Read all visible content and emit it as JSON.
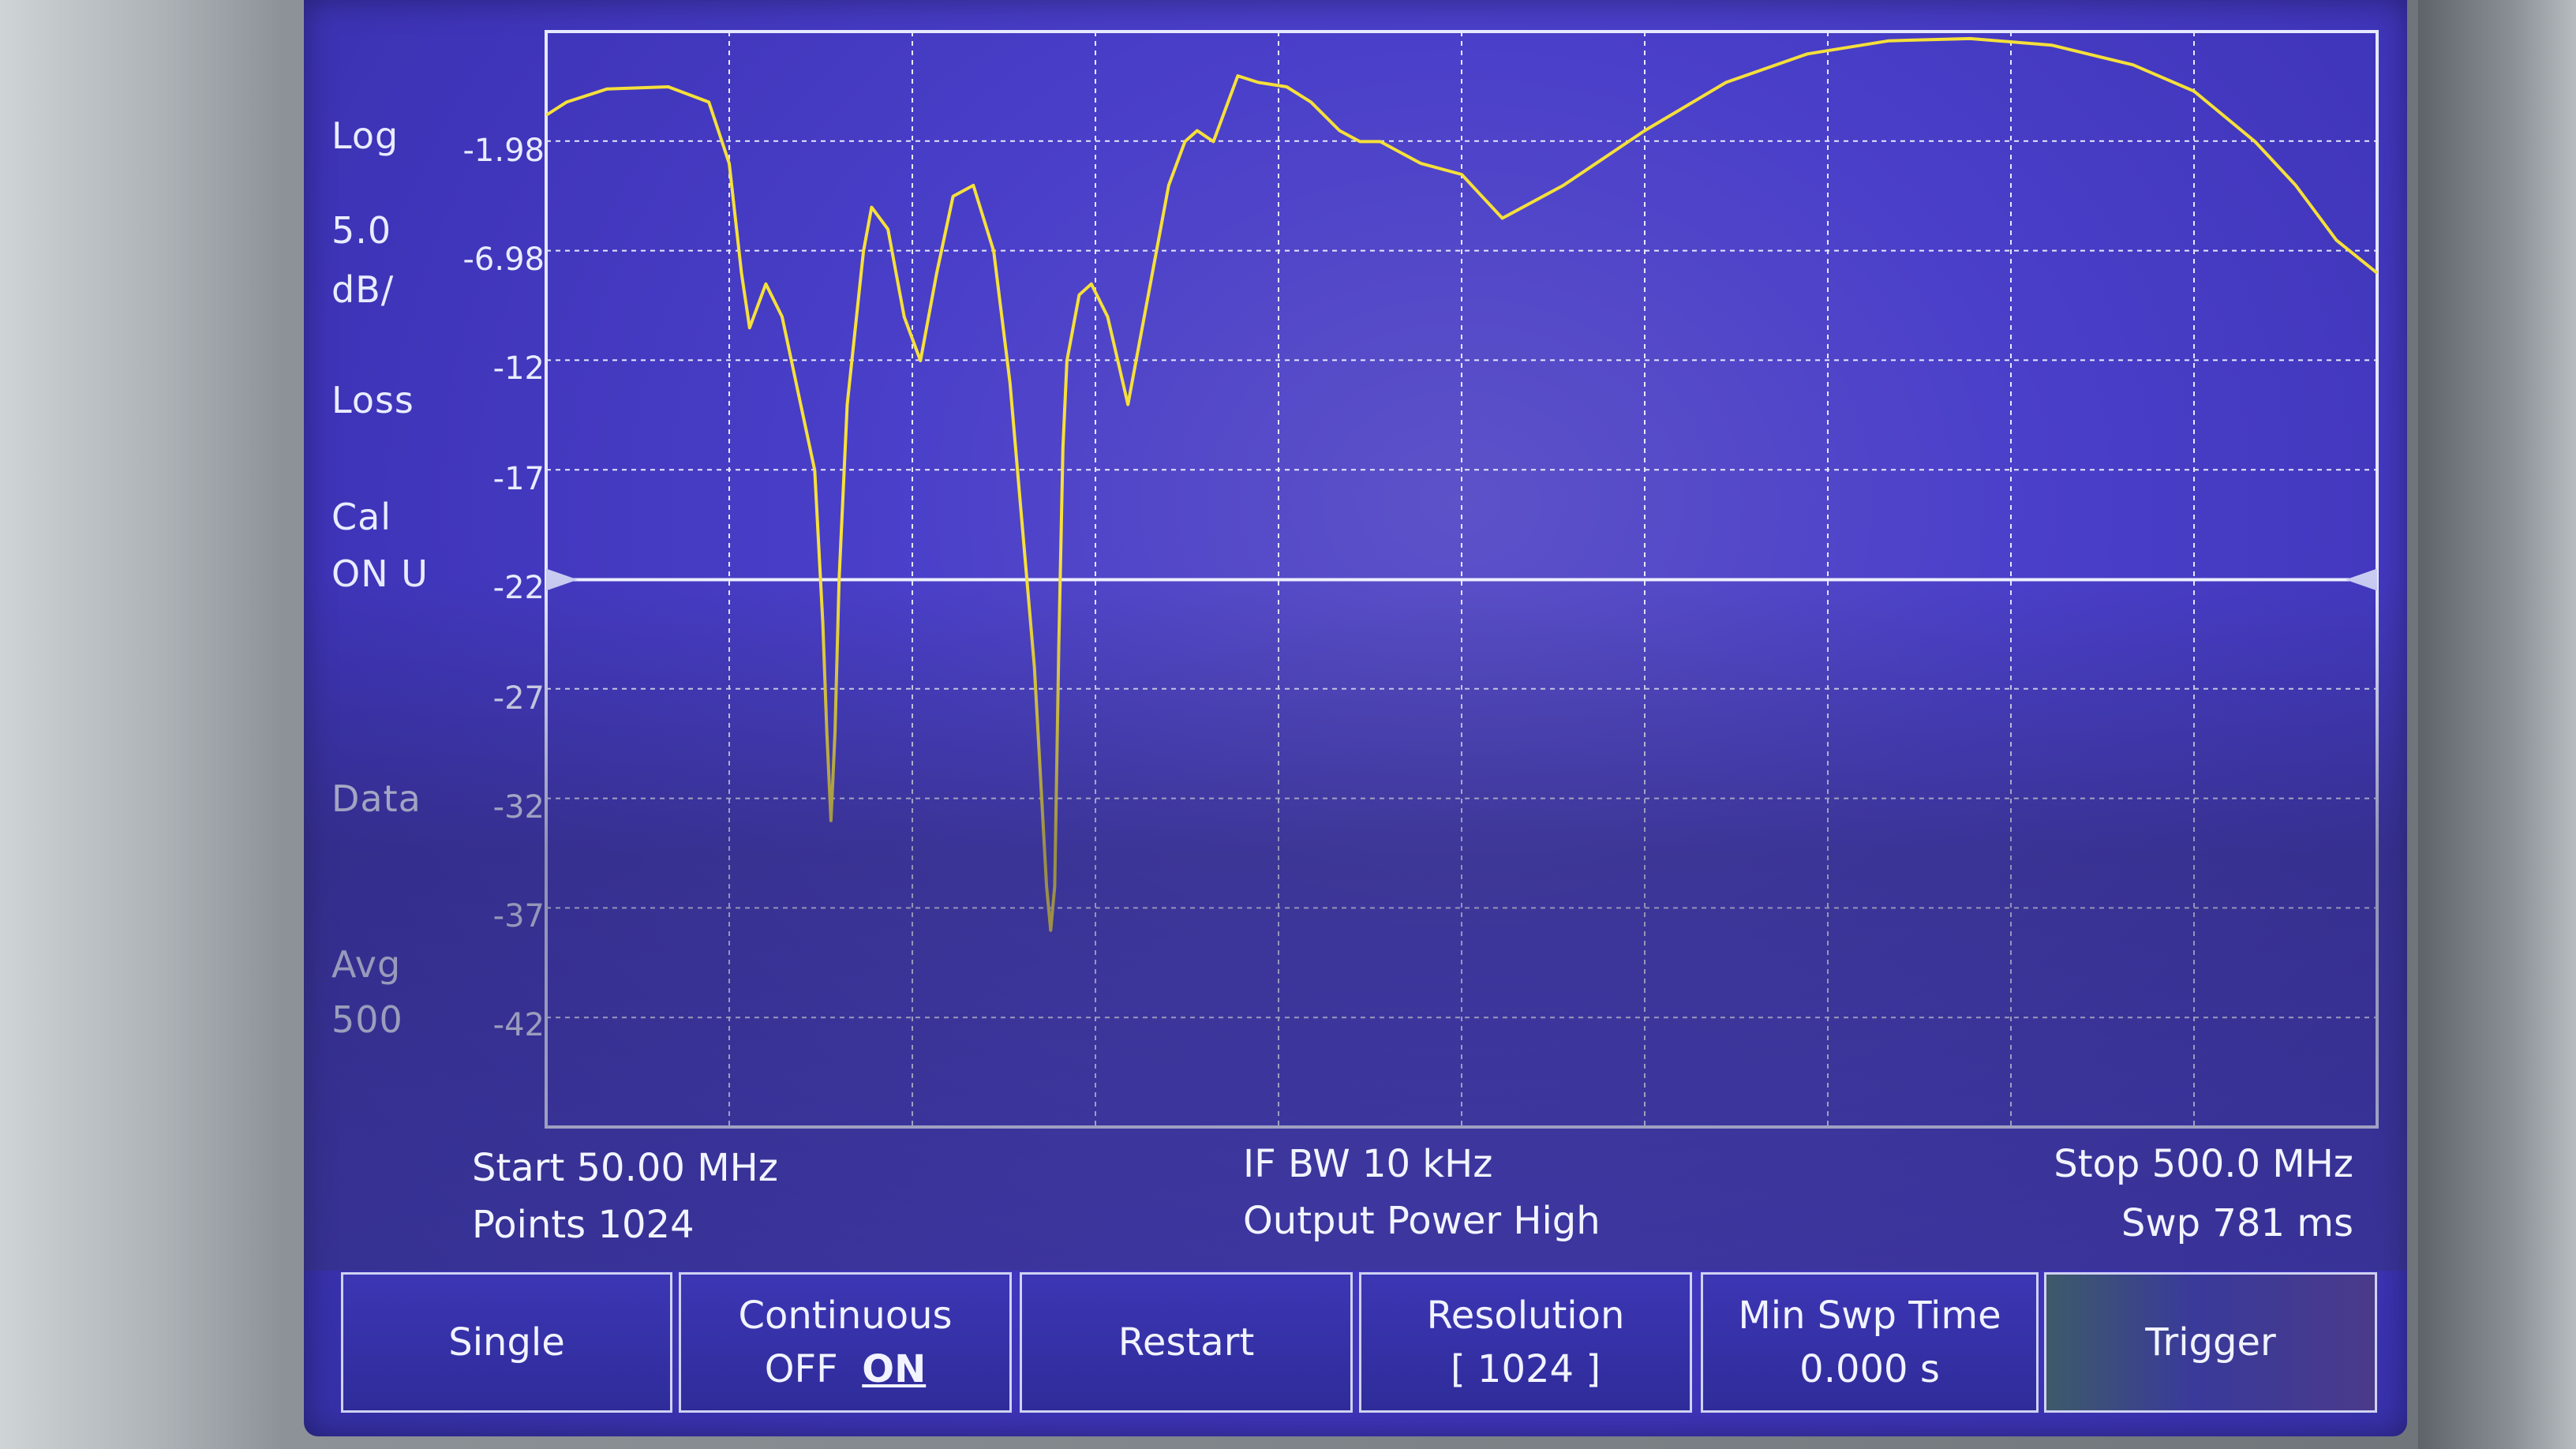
{
  "left_panel": {
    "format": "Log",
    "scale_value": "5.0",
    "scale_unit": "dB/",
    "measurement": "Loss",
    "cal_label": "Cal",
    "cal_state": "ON U",
    "trace_mode": "Data",
    "avg_label": "Avg",
    "avg_count": "500"
  },
  "y_ticks": [
    "-1.98",
    "-6.98",
    "-12",
    "-17",
    "-22",
    "-27",
    "-32",
    "-37",
    "-42"
  ],
  "reference_line_value": "-22",
  "status": {
    "start": "Start 50.00 MHz",
    "points": "Points 1024",
    "if_bw": "IF BW 10 kHz",
    "output_power": "Output Power High",
    "stop": "Stop 500.0 MHz",
    "sweep_time": "Swp 781 ms"
  },
  "softkeys": {
    "single": "Single",
    "continuous_title": "Continuous",
    "continuous_off": "OFF",
    "continuous_on": "ON",
    "restart": "Restart",
    "resolution_title": "Resolution",
    "resolution_value": "[ 1024 ]",
    "min_swp_title": "Min Swp Time",
    "min_swp_value": "0.000 s",
    "trigger": "Trigger"
  },
  "colors": {
    "screen_bg": "#4a3fc9",
    "trace": "#f5e03a",
    "grid": "#e6e8ff",
    "text": "#f2f4ff"
  },
  "chart_data": {
    "type": "line",
    "xlabel": "",
    "ylabel": "",
    "xlim": [
      50,
      500
    ],
    "ylim": [
      -46.98,
      3.02
    ],
    "x_unit": "MHz",
    "y_unit": "dB",
    "grid": true,
    "series": [
      {
        "x": [
          50,
          55,
          65,
          80,
          90,
          95,
          98,
          100,
          104,
          108,
          112,
          116,
          118,
          119,
          120,
          121,
          122,
          124,
          128,
          130,
          134,
          138,
          142,
          146,
          150,
          155,
          160,
          164,
          170,
          173,
          174,
          175,
          176,
          177,
          178,
          181,
          184,
          188,
          193,
          198,
          203,
          207,
          210,
          214,
          220,
          225,
          232,
          238,
          245,
          250,
          255,
          265,
          275,
          280,
          285,
          300,
          320,
          340,
          360,
          380,
          400,
          420,
          440,
          455,
          470,
          480,
          490,
          500
        ],
        "y": [
          -0.8,
          -0.2,
          0.4,
          0.5,
          -0.2,
          -3.0,
          -8.0,
          -10.5,
          -8.5,
          -10.0,
          -13.5,
          -17.0,
          -24.0,
          -29.0,
          -33.0,
          -29.0,
          -22.0,
          -14.0,
          -7.0,
          -5.0,
          -6.0,
          -10.0,
          -12.0,
          -8.0,
          -4.5,
          -4.0,
          -7.0,
          -13.0,
          -26.0,
          -36.0,
          -38.0,
          -36.0,
          -25.0,
          -16.0,
          -12.0,
          -9.0,
          -8.5,
          -10.0,
          -14.0,
          -9.0,
          -4.0,
          -2.0,
          -1.5,
          -2.0,
          1.0,
          0.7,
          0.5,
          -0.2,
          -1.5,
          -2.0,
          -2.0,
          -3.0,
          -3.5,
          -4.5,
          -5.5,
          -4.0,
          -1.5,
          0.7,
          2.0,
          2.6,
          2.7,
          2.4,
          1.5,
          0.3,
          -2.0,
          -4.0,
          -6.5,
          -8.0
        ]
      }
    ],
    "reference_line": -22
  }
}
